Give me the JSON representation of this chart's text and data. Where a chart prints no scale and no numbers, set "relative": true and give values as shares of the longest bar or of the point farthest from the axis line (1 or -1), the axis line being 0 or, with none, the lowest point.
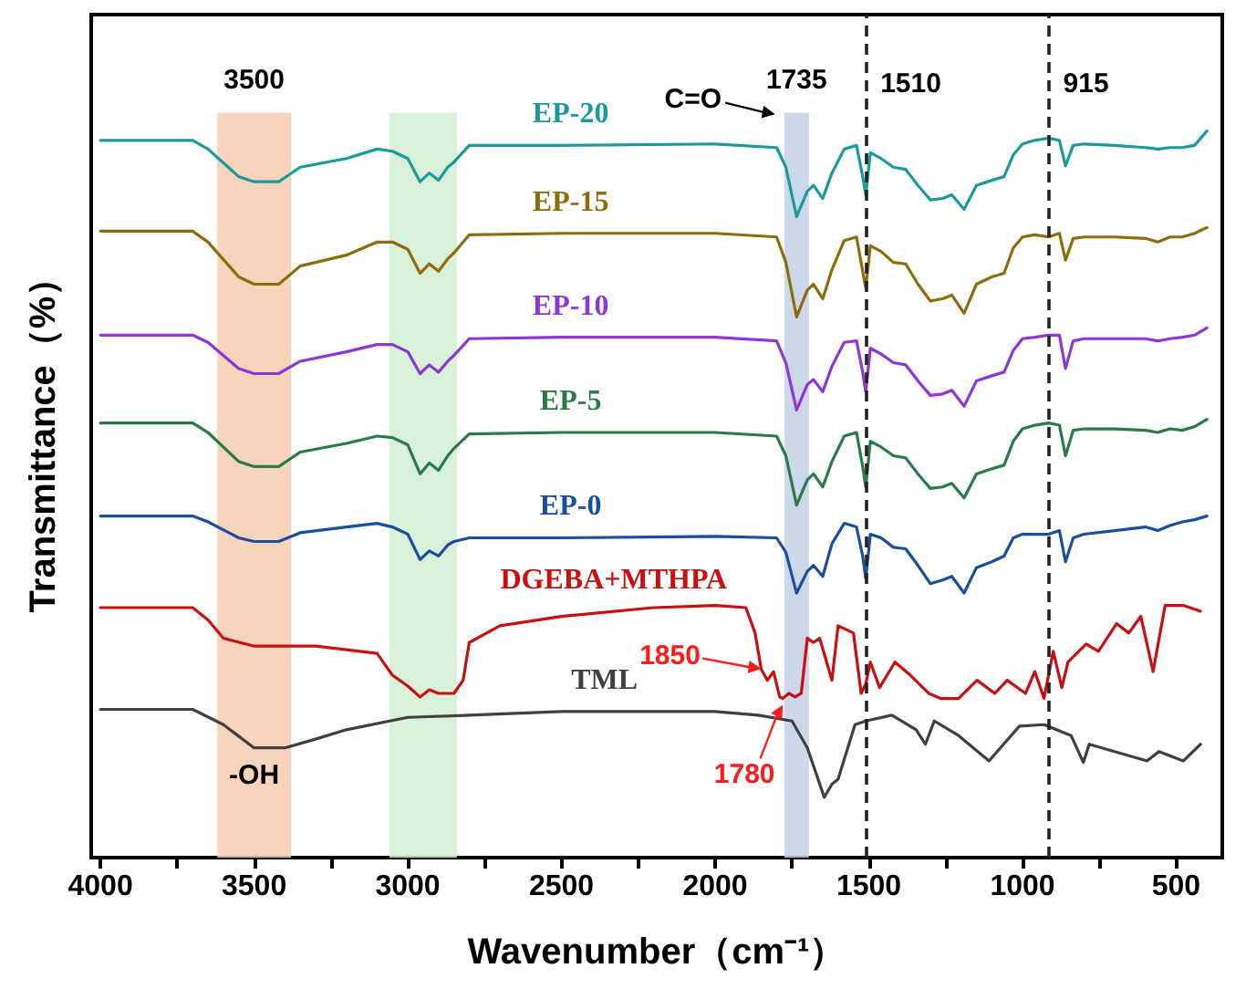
{
  "chart_data": {
    "type": "line",
    "xlabel": "Wavenumber（cm⁻¹）",
    "ylabel": "Transmittance（%）",
    "relative": true,
    "marker": "none",
    "tick_labels": "x",
    "xlim": [
      4030,
      350
    ],
    "xticks": [
      4000,
      {
        "value": 3750,
        "label": null
      },
      3500,
      {
        "value": 3250,
        "label": null
      },
      3000,
      {
        "value": 2750,
        "label": null
      },
      2500,
      {
        "value": 2250,
        "label": null
      },
      2000,
      {
        "value": 1750,
        "label": null
      },
      1500,
      {
        "value": 1250,
        "label": null
      },
      1000,
      {
        "value": 750,
        "label": null
      },
      500
    ],
    "series": [
      {
        "name": "EP-20",
        "color": "#1a9a9a",
        "x": [
          4000,
          3700,
          3650,
          3550,
          3500,
          3420,
          3350,
          3200,
          3100,
          3050,
          3000,
          2960,
          2930,
          2900,
          2870,
          2850,
          2800,
          2500,
          2000,
          1800,
          1770,
          1735,
          1700,
          1680,
          1650,
          1620,
          1580,
          1540,
          1520,
          1510,
          1495,
          1460,
          1420,
          1380,
          1340,
          1300,
          1260,
          1230,
          1190,
          1150,
          1100,
          1060,
          1030,
          1000,
          960,
          915,
          880,
          860,
          835,
          800,
          700,
          600,
          560,
          520,
          480,
          440,
          400
        ],
        "values": [
          0.987,
          0.987,
          0.975,
          0.937,
          0.93,
          0.93,
          0.95,
          0.962,
          0.975,
          0.972,
          0.962,
          0.93,
          0.942,
          0.932,
          0.95,
          0.957,
          0.98,
          0.98,
          0.982,
          0.977,
          0.95,
          0.882,
          0.917,
          0.925,
          0.907,
          0.942,
          0.975,
          0.98,
          0.937,
          0.912,
          0.97,
          0.962,
          0.95,
          0.947,
          0.925,
          0.905,
          0.907,
          0.912,
          0.892,
          0.925,
          0.932,
          0.937,
          0.967,
          0.982,
          0.987,
          0.99,
          0.987,
          0.952,
          0.98,
          0.982,
          0.98,
          0.977,
          0.975,
          0.977,
          0.977,
          0.98,
          1
        ]
      },
      {
        "name": "EP-15",
        "color": "#8c6d0c",
        "x": [
          4000,
          3700,
          3650,
          3550,
          3500,
          3420,
          3350,
          3200,
          3100,
          3050,
          3000,
          2960,
          2930,
          2900,
          2870,
          2850,
          2800,
          2500,
          2000,
          1800,
          1770,
          1735,
          1700,
          1680,
          1650,
          1620,
          1580,
          1540,
          1520,
          1510,
          1495,
          1460,
          1420,
          1380,
          1340,
          1300,
          1260,
          1230,
          1190,
          1150,
          1100,
          1060,
          1030,
          1000,
          960,
          915,
          880,
          860,
          835,
          800,
          700,
          600,
          560,
          520,
          480,
          440,
          400
        ],
        "values": [
          0.862,
          0.862,
          0.847,
          0.799,
          0.789,
          0.789,
          0.814,
          0.829,
          0.847,
          0.847,
          0.837,
          0.804,
          0.817,
          0.807,
          0.824,
          0.832,
          0.857,
          0.859,
          0.859,
          0.854,
          0.819,
          0.744,
          0.781,
          0.789,
          0.769,
          0.809,
          0.849,
          0.854,
          0.807,
          0.784,
          0.842,
          0.834,
          0.819,
          0.817,
          0.789,
          0.766,
          0.769,
          0.774,
          0.749,
          0.789,
          0.799,
          0.804,
          0.839,
          0.854,
          0.857,
          0.854,
          0.859,
          0.822,
          0.852,
          0.854,
          0.854,
          0.852,
          0.847,
          0.854,
          0.854,
          0.859,
          0.867
        ]
      },
      {
        "name": "EP-10",
        "color": "#8e36d6",
        "x": [
          4000,
          3700,
          3650,
          3550,
          3500,
          3420,
          3350,
          3200,
          3100,
          3050,
          3000,
          2960,
          2930,
          2900,
          2870,
          2850,
          2800,
          2500,
          2000,
          1800,
          1770,
          1735,
          1700,
          1680,
          1650,
          1620,
          1580,
          1540,
          1520,
          1510,
          1495,
          1460,
          1420,
          1380,
          1340,
          1300,
          1260,
          1230,
          1190,
          1150,
          1100,
          1060,
          1030,
          1000,
          960,
          915,
          880,
          860,
          835,
          800,
          700,
          600,
          560,
          520,
          480,
          440,
          400
        ],
        "values": [
          0.719,
          0.719,
          0.709,
          0.673,
          0.666,
          0.666,
          0.683,
          0.696,
          0.706,
          0.706,
          0.696,
          0.666,
          0.678,
          0.668,
          0.683,
          0.691,
          0.714,
          0.716,
          0.716,
          0.711,
          0.681,
          0.616,
          0.651,
          0.658,
          0.641,
          0.676,
          0.709,
          0.711,
          0.668,
          0.641,
          0.701,
          0.693,
          0.681,
          0.678,
          0.656,
          0.636,
          0.638,
          0.643,
          0.621,
          0.656,
          0.663,
          0.668,
          0.698,
          0.714,
          0.716,
          0.719,
          0.719,
          0.673,
          0.711,
          0.714,
          0.714,
          0.714,
          0.711,
          0.714,
          0.716,
          0.719,
          0.729
        ]
      },
      {
        "name": "EP-5",
        "color": "#2a7a4a",
        "x": [
          4000,
          3700,
          3650,
          3550,
          3500,
          3420,
          3350,
          3200,
          3100,
          3050,
          3000,
          2960,
          2930,
          2900,
          2870,
          2850,
          2800,
          2500,
          2000,
          1800,
          1770,
          1735,
          1700,
          1680,
          1650,
          1620,
          1580,
          1540,
          1520,
          1510,
          1495,
          1460,
          1420,
          1380,
          1340,
          1300,
          1260,
          1230,
          1190,
          1150,
          1100,
          1060,
          1030,
          1000,
          960,
          915,
          880,
          860,
          835,
          800,
          700,
          600,
          560,
          520,
          480,
          440,
          400
        ],
        "values": [
          0.598,
          0.598,
          0.585,
          0.545,
          0.538,
          0.538,
          0.558,
          0.57,
          0.58,
          0.578,
          0.568,
          0.528,
          0.543,
          0.533,
          0.553,
          0.563,
          0.583,
          0.585,
          0.585,
          0.58,
          0.553,
          0.485,
          0.52,
          0.528,
          0.51,
          0.545,
          0.58,
          0.585,
          0.538,
          0.51,
          0.573,
          0.565,
          0.553,
          0.55,
          0.528,
          0.508,
          0.51,
          0.515,
          0.495,
          0.528,
          0.535,
          0.54,
          0.573,
          0.59,
          0.595,
          0.598,
          0.595,
          0.553,
          0.588,
          0.59,
          0.59,
          0.588,
          0.585,
          0.59,
          0.588,
          0.593,
          0.603
        ]
      },
      {
        "name": "EP-0",
        "color": "#1a4fa0",
        "x": [
          4000,
          3700,
          3650,
          3550,
          3500,
          3420,
          3350,
          3200,
          3100,
          3050,
          3000,
          2960,
          2930,
          2900,
          2870,
          2850,
          2800,
          2500,
          2000,
          1800,
          1770,
          1735,
          1700,
          1680,
          1650,
          1620,
          1580,
          1540,
          1520,
          1510,
          1495,
          1460,
          1420,
          1380,
          1340,
          1300,
          1260,
          1230,
          1190,
          1150,
          1100,
          1060,
          1030,
          1000,
          960,
          915,
          880,
          860,
          835,
          800,
          700,
          600,
          560,
          520,
          480,
          440,
          400
        ],
        "values": [
          0.47,
          0.47,
          0.462,
          0.44,
          0.435,
          0.435,
          0.447,
          0.455,
          0.46,
          0.455,
          0.445,
          0.41,
          0.422,
          0.415,
          0.43,
          0.435,
          0.44,
          0.44,
          0.442,
          0.44,
          0.42,
          0.364,
          0.394,
          0.402,
          0.387,
          0.432,
          0.46,
          0.455,
          0.415,
          0.384,
          0.445,
          0.44,
          0.427,
          0.425,
          0.402,
          0.377,
          0.382,
          0.387,
          0.364,
          0.399,
          0.407,
          0.415,
          0.44,
          0.445,
          0.445,
          0.445,
          0.45,
          0.407,
          0.44,
          0.445,
          0.45,
          0.455,
          0.45,
          0.457,
          0.462,
          0.465,
          0.47
        ]
      },
      {
        "name": "DGEBA+MTHPA",
        "color": "#c81010",
        "x": [
          4000,
          3700,
          3650,
          3600,
          3500,
          3300,
          3100,
          3050,
          3000,
          2960,
          2930,
          2900,
          2850,
          2820,
          2800,
          2700,
          2500,
          2200,
          2000,
          1900,
          1870,
          1850,
          1830,
          1810,
          1790,
          1780,
          1760,
          1740,
          1720,
          1700,
          1680,
          1660,
          1620,
          1600,
          1550,
          1525,
          1510,
          1495,
          1465,
          1415,
          1365,
          1305,
          1267,
          1208,
          1148,
          1090,
          1050,
          990,
          960,
          930,
          900,
          872,
          852,
          793,
          753,
          694,
          654,
          615,
          575,
          536,
          477,
          421
        ],
        "values": [
          0.344,
          0.344,
          0.327,
          0.302,
          0.291,
          0.291,
          0.281,
          0.251,
          0.236,
          0.221,
          0.231,
          0.226,
          0.226,
          0.244,
          0.296,
          0.319,
          0.332,
          0.344,
          0.347,
          0.344,
          0.309,
          0.259,
          0.244,
          0.256,
          0.221,
          0.219,
          0.226,
          0.221,
          0.226,
          0.302,
          0.296,
          0.302,
          0.244,
          0.319,
          0.309,
          0.226,
          0.239,
          0.269,
          0.234,
          0.269,
          0.251,
          0.226,
          0.219,
          0.219,
          0.244,
          0.226,
          0.244,
          0.226,
          0.256,
          0.219,
          0.284,
          0.234,
          0.269,
          0.294,
          0.284,
          0.322,
          0.309,
          0.332,
          0.256,
          0.347,
          0.347,
          0.339
        ]
      },
      {
        "name": "TML",
        "color": "#404040",
        "x": [
          4000,
          3700,
          3600,
          3500,
          3400,
          3300,
          3200,
          3000,
          2800,
          2500,
          2000,
          1860,
          1750,
          1700,
          1645,
          1620,
          1600,
          1545,
          1510,
          1425,
          1346,
          1316,
          1287,
          1208,
          1109,
          1010,
          930,
          842,
          802,
          783,
          595,
          556,
          477,
          421
        ],
        "values": [
          0.204,
          0.204,
          0.183,
          0.151,
          0.151,
          0.163,
          0.176,
          0.193,
          0.196,
          0.201,
          0.201,
          0.196,
          0.188,
          0.151,
          0.083,
          0.101,
          0.108,
          0.183,
          0.188,
          0.196,
          0.176,
          0.156,
          0.188,
          0.168,
          0.133,
          0.181,
          0.183,
          0.168,
          0.131,
          0.156,
          0.133,
          0.146,
          0.133,
          0.156
        ]
      }
    ],
    "bands": [
      {
        "axis": "x",
        "from": 3620,
        "to": 3380,
        "label": "3500",
        "color": "#f8cdb0"
      },
      {
        "axis": "x",
        "from": 3060,
        "to": 2840,
        "color": "#d2efd2"
      },
      {
        "axis": "x",
        "from": 1775,
        "to": 1695,
        "label": "1735",
        "color": "#c3d0e6"
      }
    ],
    "ref_lines": [
      {
        "axis": "x",
        "value": 1510,
        "label": "1510",
        "color": "#222222",
        "line_style": "dashed"
      },
      {
        "axis": "x",
        "value": 915,
        "label": "915",
        "color": "#222222",
        "line_style": "dashed"
      }
    ],
    "annotations": [
      "-OH",
      {
        "text": "C=O",
        "x": 1805,
        "y": 1.023
      },
      {
        "text": "1850",
        "x": 1850,
        "y": 0.26
      },
      {
        "text": "1780",
        "x": 1780,
        "y": 0.21
      }
    ]
  }
}
